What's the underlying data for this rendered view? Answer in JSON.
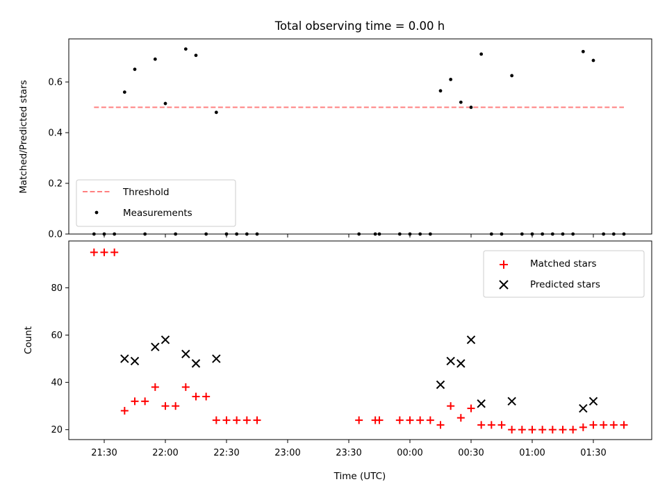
{
  "chart_data": [
    {
      "type": "scatter",
      "title": "Total observing time = 0.00 h",
      "xlabel": "",
      "ylabel": "Matched/Predicted stars",
      "ylim": [
        0,
        0.77
      ],
      "yticks": [
        0.0,
        0.2,
        0.4,
        0.6
      ],
      "yticklabels": [
        "0.0",
        "0.2",
        "0.4",
        "0.6"
      ],
      "legend": {
        "placement": "lower-left",
        "entries": [
          "Threshold",
          "Measurements"
        ]
      },
      "threshold": {
        "name": "Threshold",
        "value": 0.5,
        "x_start": "21:25",
        "x_end": "01:45",
        "color": "#ff7f7f"
      },
      "series": [
        {
          "name": "Measurements",
          "color": "#000000",
          "points": [
            [
              "21:25",
              0
            ],
            [
              "21:30",
              0
            ],
            [
              "21:35",
              0
            ],
            [
              "21:40",
              0.56
            ],
            [
              "21:45",
              0.65
            ],
            [
              "21:50",
              0
            ],
            [
              "21:55",
              0.69
            ],
            [
              "22:00",
              0.515
            ],
            [
              "22:05",
              0
            ],
            [
              "22:10",
              0.73
            ],
            [
              "22:15",
              0.705
            ],
            [
              "22:20",
              0
            ],
            [
              "22:25",
              0.48
            ],
            [
              "22:30",
              0
            ],
            [
              "22:35",
              0
            ],
            [
              "22:40",
              0
            ],
            [
              "22:45",
              0
            ],
            [
              "23:35",
              0
            ],
            [
              "23:43",
              0
            ],
            [
              "23:45",
              0
            ],
            [
              "23:55",
              0
            ],
            [
              "00:00",
              0
            ],
            [
              "00:05",
              0
            ],
            [
              "00:10",
              0
            ],
            [
              "00:15",
              0.565
            ],
            [
              "00:20",
              0.61
            ],
            [
              "00:25",
              0.52
            ],
            [
              "00:30",
              0.5
            ],
            [
              "00:35",
              0.71
            ],
            [
              "00:40",
              0
            ],
            [
              "00:45",
              0
            ],
            [
              "00:50",
              0.625
            ],
            [
              "00:55",
              0
            ],
            [
              "01:00",
              0
            ],
            [
              "01:05",
              0
            ],
            [
              "01:10",
              0
            ],
            [
              "01:15",
              0
            ],
            [
              "01:20",
              0
            ],
            [
              "01:25",
              0.72
            ],
            [
              "01:30",
              0.685
            ],
            [
              "01:35",
              0
            ],
            [
              "01:40",
              0
            ],
            [
              "01:45",
              0
            ]
          ]
        }
      ]
    },
    {
      "type": "scatter",
      "title": "",
      "xlabel": "Time (UTC)",
      "ylabel": "Count",
      "ylim": [
        15.8,
        99.8
      ],
      "yticks": [
        20,
        40,
        60,
        80
      ],
      "yticklabels": [
        "20",
        "40",
        "60",
        "80"
      ],
      "xticklabels": [
        "21:30",
        "22:00",
        "22:30",
        "23:00",
        "23:30",
        "00:00",
        "00:30",
        "01:00",
        "01:30"
      ],
      "legend": {
        "placement": "top-right",
        "entries": [
          "Matched stars",
          "Predicted stars"
        ]
      },
      "series": [
        {
          "name": "Matched stars",
          "marker": "+",
          "color": "#ff0000",
          "points": [
            [
              "21:25",
              95
            ],
            [
              "21:30",
              95
            ],
            [
              "21:35",
              95
            ],
            [
              "21:40",
              28
            ],
            [
              "21:45",
              32
            ],
            [
              "21:50",
              32
            ],
            [
              "21:55",
              38
            ],
            [
              "22:00",
              30
            ],
            [
              "22:05",
              30
            ],
            [
              "22:10",
              38
            ],
            [
              "22:15",
              34
            ],
            [
              "22:20",
              34
            ],
            [
              "22:25",
              24
            ],
            [
              "22:30",
              24
            ],
            [
              "22:35",
              24
            ],
            [
              "22:40",
              24
            ],
            [
              "22:45",
              24
            ],
            [
              "23:35",
              24
            ],
            [
              "23:43",
              24
            ],
            [
              "23:45",
              24
            ],
            [
              "23:55",
              24
            ],
            [
              "00:00",
              24
            ],
            [
              "00:05",
              24
            ],
            [
              "00:10",
              24
            ],
            [
              "00:15",
              22
            ],
            [
              "00:20",
              30
            ],
            [
              "00:25",
              25
            ],
            [
              "00:30",
              29
            ],
            [
              "00:35",
              22
            ],
            [
              "00:40",
              22
            ],
            [
              "00:45",
              22
            ],
            [
              "00:50",
              20
            ],
            [
              "00:55",
              20
            ],
            [
              "01:00",
              20
            ],
            [
              "01:05",
              20
            ],
            [
              "01:10",
              20
            ],
            [
              "01:15",
              20
            ],
            [
              "01:20",
              20
            ],
            [
              "01:25",
              21
            ],
            [
              "01:30",
              22
            ],
            [
              "01:35",
              22
            ],
            [
              "01:40",
              22
            ],
            [
              "01:45",
              22
            ]
          ]
        },
        {
          "name": "Predicted stars",
          "marker": "x",
          "color": "#000000",
          "points": [
            [
              "21:40",
              50
            ],
            [
              "21:45",
              49
            ],
            [
              "21:55",
              55
            ],
            [
              "22:00",
              58
            ],
            [
              "22:10",
              52
            ],
            [
              "22:15",
              48
            ],
            [
              "22:25",
              50
            ],
            [
              "00:15",
              39
            ],
            [
              "00:20",
              49
            ],
            [
              "00:25",
              48
            ],
            [
              "00:30",
              58
            ],
            [
              "00:35",
              31
            ],
            [
              "00:50",
              32
            ],
            [
              "01:25",
              29
            ],
            [
              "01:30",
              32
            ]
          ]
        }
      ]
    }
  ]
}
